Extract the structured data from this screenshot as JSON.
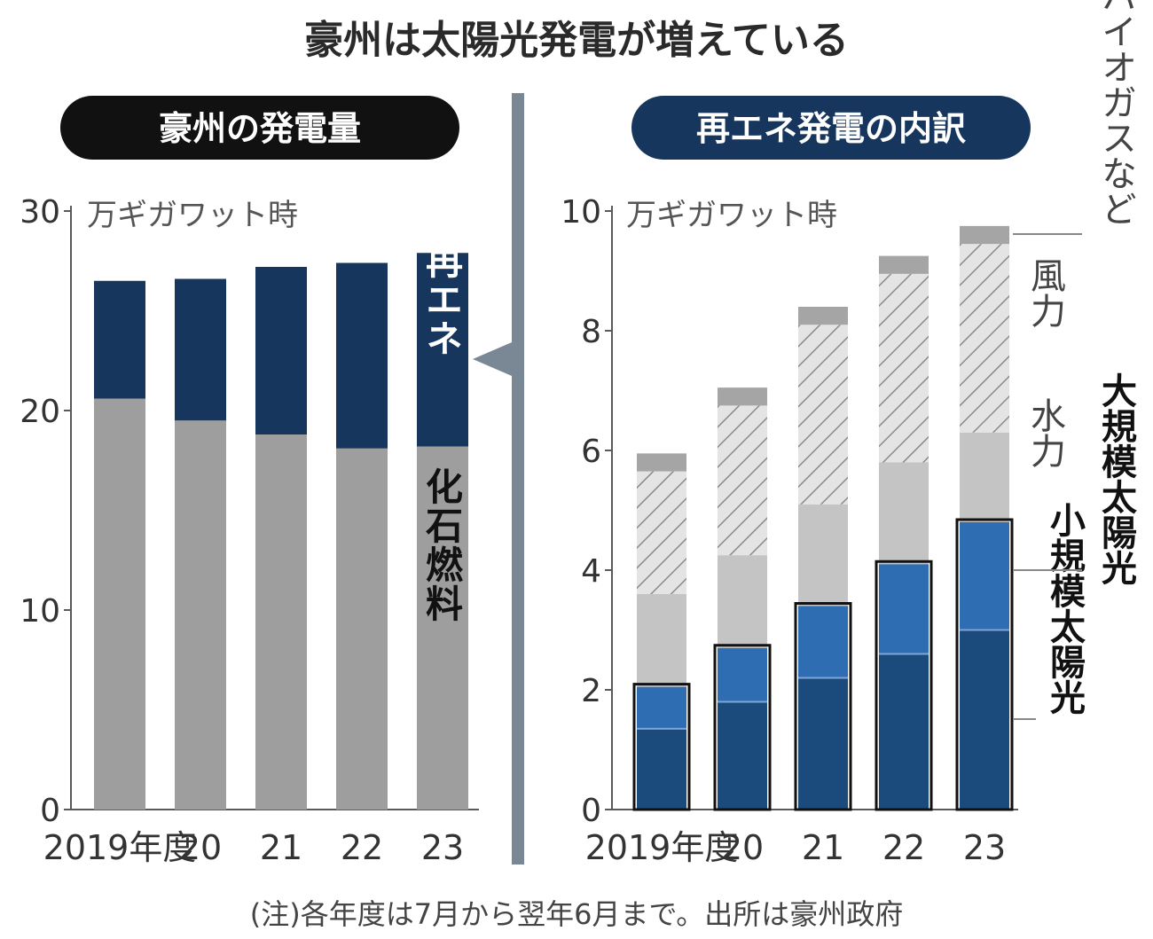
{
  "title": "豪州は太陽光発電が増えている",
  "note": "(注)各年度は7月から翌年6月まで。出所は豪州政府",
  "colors": {
    "navy": "#17365d",
    "gray": "#9e9e9e",
    "light_gray": "#c4c4c4",
    "hatch_bg": "#e4e4e4",
    "hatch_line": "#8a8a8a",
    "bio_gray": "#a5a5a5",
    "large_solar": "#2f6db3",
    "small_solar": "#1b4a7c",
    "axis": "#5a5a5a",
    "black_pill": "#111111",
    "blue_pill": "#17365d",
    "divider": "#7a8794"
  },
  "chart_data": [
    {
      "type": "bar",
      "stacked": true,
      "panel_title": "豪州の発電量",
      "unit": "万ギガワット時",
      "categories": [
        "2019年度",
        "20",
        "21",
        "22",
        "23"
      ],
      "ylim": [
        0,
        30
      ],
      "yticks": [
        0,
        10,
        20,
        30
      ],
      "series": [
        {
          "name": "化石燃料",
          "values": [
            20.6,
            19.5,
            18.8,
            18.1,
            18.2
          ]
        },
        {
          "name": "再エネ",
          "values": [
            5.9,
            7.1,
            8.4,
            9.3,
            9.7
          ]
        }
      ]
    },
    {
      "type": "bar",
      "stacked": true,
      "panel_title": "再エネ発電の内訳",
      "unit": "万ギガワット時",
      "categories": [
        "2019年度",
        "20",
        "21",
        "22",
        "23"
      ],
      "ylim": [
        0,
        10
      ],
      "yticks": [
        0,
        2,
        4,
        6,
        8,
        10
      ],
      "series": [
        {
          "name": "小規模太陽光",
          "values": [
            1.35,
            1.8,
            2.2,
            2.6,
            3.0
          ]
        },
        {
          "name": "大規模太陽光",
          "values": [
            0.7,
            0.9,
            1.2,
            1.5,
            1.8
          ]
        },
        {
          "name": "水力",
          "values": [
            1.55,
            1.55,
            1.7,
            1.7,
            1.5
          ]
        },
        {
          "name": "風力",
          "values": [
            2.05,
            2.5,
            3.0,
            3.15,
            3.15
          ]
        },
        {
          "name": "バイオガスなど",
          "values": [
            0.3,
            0.3,
            0.3,
            0.3,
            0.3
          ]
        }
      ]
    }
  ]
}
